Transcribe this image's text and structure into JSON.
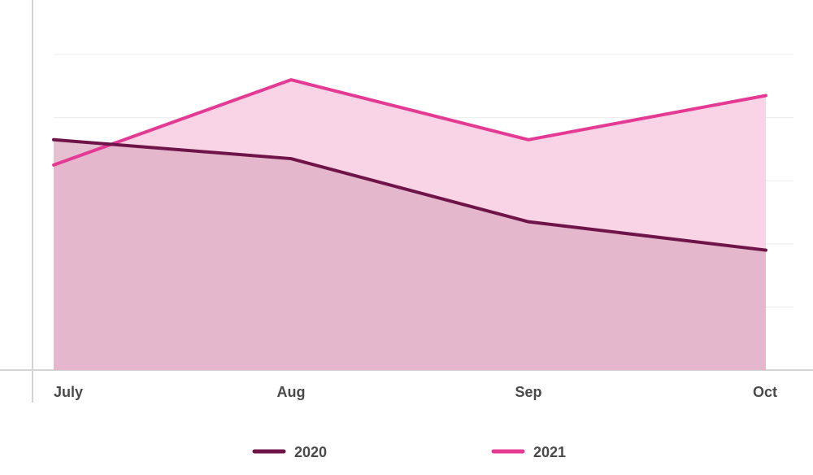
{
  "chart_data": {
    "type": "area",
    "categories": [
      "July",
      "Aug",
      "Sep",
      "Oct"
    ],
    "series": [
      {
        "name": "2020",
        "values": [
          73,
          67,
          47,
          38
        ],
        "color": "#6f1448",
        "fill": "#dfb0c5"
      },
      {
        "name": "2021",
        "values": [
          65,
          92,
          73,
          87
        ],
        "color": "#e43a93",
        "fill": "#f9d3e6"
      }
    ],
    "ylim": [
      0,
      108
    ],
    "grid": true,
    "legend": "bottom",
    "title": "",
    "xlabel": "",
    "ylabel": ""
  }
}
